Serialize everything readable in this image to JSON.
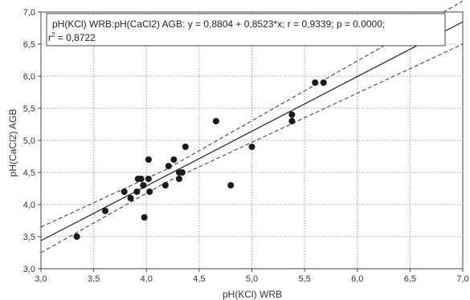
{
  "chart_data": {
    "type": "scatter",
    "xlabel": "pH(KCl) WRB",
    "ylabel": "pH(CaCl2) AGB",
    "xlim": [
      3.0,
      7.0
    ],
    "ylim": [
      3.0,
      7.0
    ],
    "x_ticks": [
      "3,0",
      "3,5",
      "4,0",
      "4,5",
      "5,0",
      "5,5",
      "6,0",
      "6,5",
      "7,0"
    ],
    "y_ticks": [
      "3,0",
      "3,5",
      "4,0",
      "4,5",
      "5,0",
      "5,5",
      "6,0",
      "6,5",
      "7,0"
    ],
    "grid": true,
    "annotation": {
      "line1": "pH(KCl) WRB:pH(CaCl2) AGB:   y = 0,8804 + 0,8523*x;  r = 0,9339; p = 0.0000;",
      "line2_prefix": "r",
      "line2_sup": "2",
      "line2_suffix": " = 0,8722"
    },
    "regression": {
      "intercept": 0.8804,
      "slope": 0.8523
    },
    "confidence_band": {
      "lower": [
        [
          3.0,
          3.25
        ],
        [
          4.19,
          4.35
        ],
        [
          7.0,
          6.5
        ]
      ],
      "upper": [
        [
          3.0,
          3.65
        ],
        [
          4.19,
          4.55
        ],
        [
          7.0,
          7.17
        ]
      ]
    },
    "points": [
      [
        3.34,
        3.5
      ],
      [
        3.61,
        3.9
      ],
      [
        3.79,
        4.2
      ],
      [
        3.85,
        4.1
      ],
      [
        3.91,
        4.2
      ],
      [
        3.92,
        4.4
      ],
      [
        3.95,
        4.4
      ],
      [
        3.97,
        4.3
      ],
      [
        3.98,
        3.8
      ],
      [
        4.02,
        4.4
      ],
      [
        4.02,
        4.7
      ],
      [
        4.03,
        4.2
      ],
      [
        4.18,
        4.3
      ],
      [
        4.21,
        4.6
      ],
      [
        4.26,
        4.7
      ],
      [
        4.31,
        4.5
      ],
      [
        4.31,
        4.4
      ],
      [
        4.34,
        4.5
      ],
      [
        4.37,
        4.9
      ],
      [
        4.66,
        5.3
      ],
      [
        4.8,
        4.3
      ],
      [
        5.0,
        4.9
      ],
      [
        5.38,
        5.4
      ],
      [
        5.38,
        5.3
      ],
      [
        5.6,
        5.9
      ],
      [
        5.68,
        5.9
      ],
      [
        6.71,
        6.6
      ]
    ]
  }
}
